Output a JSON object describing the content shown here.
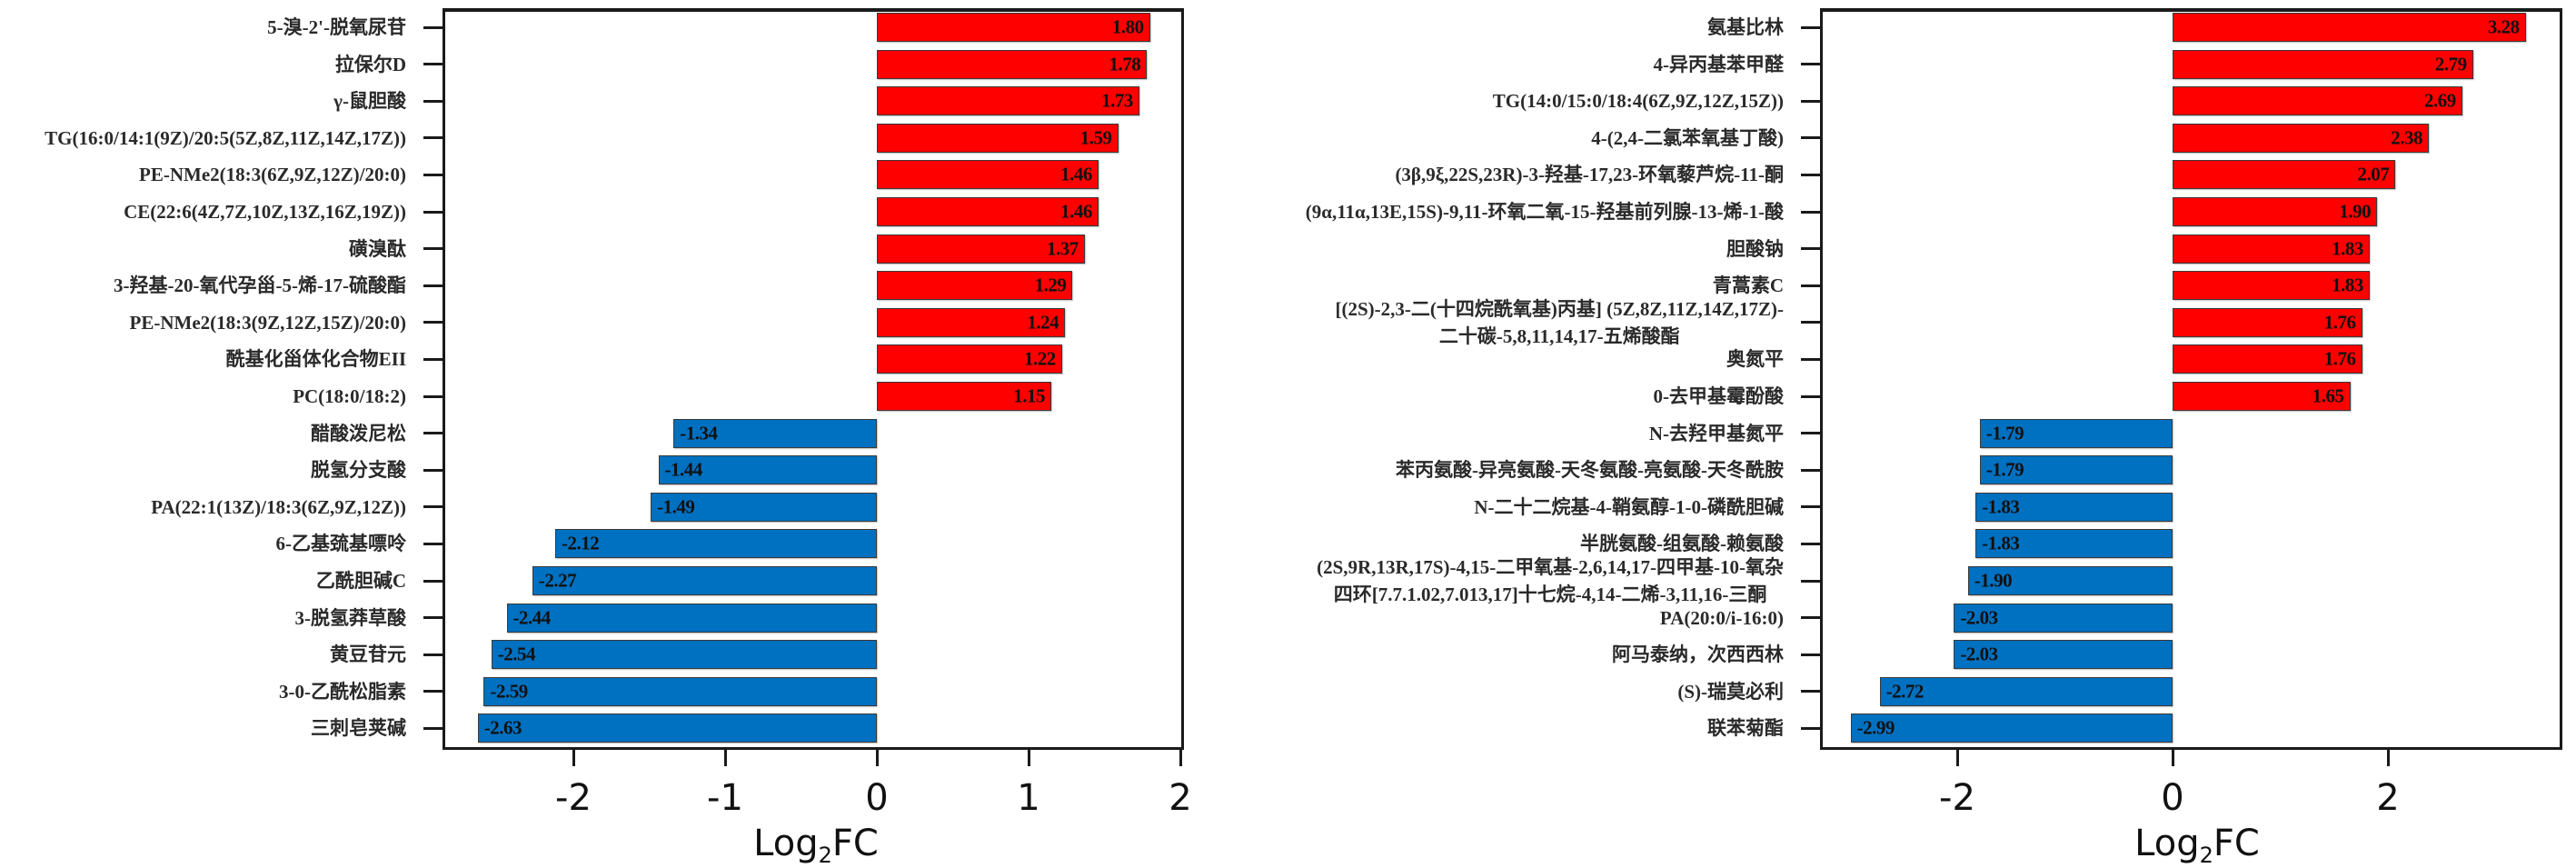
{
  "chart_data": [
    {
      "type": "bar",
      "orientation": "horizontal",
      "title": "",
      "xlabel": "Log2FC",
      "ylabel": "",
      "xlim": [
        -2.8,
        2.03
      ],
      "xticks": [
        -2,
        -1,
        0,
        1,
        2
      ],
      "grid": false,
      "legend": null,
      "colors": {
        "up": "#ff0000",
        "down": "#0070c0"
      },
      "categories": [
        "5-溴-2'-脱氧尿苷",
        "拉保尔D",
        "γ-鼠胆酸",
        "TG(16:0/14:1(9Z)/20:5(5Z,8Z,11Z,14Z,17Z))",
        "PE-NMe2(18:3(6Z,9Z,12Z)/20:0)",
        "CE(22:6(4Z,7Z,10Z,13Z,16Z,19Z))",
        "磺溴酞",
        "3-羟基-20-氧代孕甾-5-烯-17-硫酸酯",
        "PE-NMe2(18:3(9Z,12Z,15Z)/20:0)",
        "酰基化甾体化合物EII",
        "PC(18:0/18:2)",
        "醋酸泼尼松",
        "脱氢分支酸",
        "PA(22:1(13Z)/18:3(6Z,9Z,12Z))",
        "6-乙基巯基嘌呤",
        "乙酰胆碱C",
        "3-脱氢莽草酸",
        "黄豆苷元",
        "3-0-乙酰松脂素",
        "三刺皂荚碱"
      ],
      "values": [
        1.8,
        1.78,
        1.73,
        1.59,
        1.46,
        1.46,
        1.37,
        1.29,
        1.24,
        1.22,
        1.15,
        -1.34,
        -1.44,
        -1.49,
        -2.12,
        -2.27,
        -2.44,
        -2.54,
        -2.59,
        -2.63
      ],
      "value_labels": [
        "1.80",
        "1.78",
        "1.73",
        "1.59",
        "1.46",
        "1.46",
        "1.37",
        "1.29",
        "1.24",
        "1.22",
        "1.15",
        "-1.34",
        "-1.44",
        "-1.49",
        "-2.12",
        "-2.27",
        "-2.44",
        "-2.54",
        "-2.59",
        "-2.63"
      ]
    },
    {
      "type": "bar",
      "orientation": "horizontal",
      "title": "",
      "xlabel": "Log2FC",
      "ylabel": "",
      "xlim": [
        -3.26,
        3.63
      ],
      "xticks": [
        -2,
        0,
        2
      ],
      "grid": false,
      "legend": null,
      "colors": {
        "up": "#ff0000",
        "down": "#0070c0"
      },
      "categories": [
        "氨基比林",
        "4-异丙基苯甲醛",
        "TG(14:0/15:0/18:4(6Z,9Z,12Z,15Z))",
        "4-(2,4-二氯苯氧基丁酸)",
        "(3β,9ξ,22S,23R)-3-羟基-17,23-环氧藜芦烷-11-酮",
        "(9α,11α,13E,15S)-9,11-环氧二氧-15-羟基前列腺-13-烯-1-酸",
        "胆酸钠",
        "青蒿素C",
        "[(2S)-2,3-二(十四烷酰氧基)丙基] (5Z,8Z,11Z,14Z,17Z)-二十碳-5,8,11,14,17-五烯酸酯",
        "奥氮平",
        "0-去甲基霉酚酸",
        "N-去羟甲基氮平",
        "苯丙氨酸-异亮氨酸-天冬氨酸-亮氨酸-天冬酰胺",
        "N-二十二烷基-4-鞘氨醇-1-0-磷酰胆碱",
        "半胱氨酸-组氨酸-赖氨酸",
        "(2S,9R,13R,17S)-4,15-二甲氧基-2,6,14,17-四甲基-10-氧杂四环[7.7.1.02,7.013,17]十七烷-4,14-二烯-3,11,16-三酮",
        "PA(20:0/i-16:0)",
        "阿马泰纳，次西西林",
        "(S)-瑞莫必利",
        "联苯菊酯"
      ],
      "values": [
        3.28,
        2.79,
        2.69,
        2.38,
        2.07,
        1.9,
        1.83,
        1.83,
        1.76,
        1.76,
        1.65,
        -1.79,
        -1.79,
        -1.83,
        -1.83,
        -1.9,
        -2.03,
        -2.03,
        -2.72,
        -2.99
      ],
      "value_labels": [
        "3.28",
        "2.79",
        "2.69",
        "2.38",
        "2.07",
        "1.90",
        "1.83",
        "1.83",
        "1.76",
        "1.76",
        "1.65",
        "-1.79",
        "-1.79",
        "-1.83",
        "-1.83",
        "-1.90",
        "-2.03",
        "-2.03",
        "-2.72",
        "-2.99"
      ]
    }
  ],
  "panels": [
    {
      "xlabel_main": "Log",
      "xlabel_sub": "2",
      "xlabel_tail": "FC",
      "xtick_labels": [
        "-2",
        "-1",
        "0",
        "1",
        "2"
      ],
      "label_lines": [
        [
          "5-溴-2'-脱氧尿苷"
        ],
        [
          "拉保尔D"
        ],
        [
          "γ-鼠胆酸"
        ],
        [
          "TG(16:0/14:1(9Z)/20:5(5Z,8Z,11Z,14Z,17Z))"
        ],
        [
          "PE-NMe2(18:3(6Z,9Z,12Z)/20:0)"
        ],
        [
          "CE(22:6(4Z,7Z,10Z,13Z,16Z,19Z))"
        ],
        [
          "磺溴酞"
        ],
        [
          "3-羟基-20-氧代孕甾-5-烯-17-硫酸酯"
        ],
        [
          "PE-NMe2(18:3(9Z,12Z,15Z)/20:0)"
        ],
        [
          "酰基化甾体化合物EII"
        ],
        [
          "PC(18:0/18:2)"
        ],
        [
          "醋酸泼尼松"
        ],
        [
          "脱氢分支酸"
        ],
        [
          "PA(22:1(13Z)/18:3(6Z,9Z,12Z))"
        ],
        [
          "6-乙基巯基嘌呤"
        ],
        [
          "乙酰胆碱C"
        ],
        [
          "3-脱氢莽草酸"
        ],
        [
          "黄豆苷元"
        ],
        [
          "3-0-乙酰松脂素"
        ],
        [
          "三刺皂荚碱"
        ]
      ]
    },
    {
      "xlabel_main": "Log",
      "xlabel_sub": "2",
      "xlabel_tail": "FC",
      "xtick_labels": [
        "-2",
        "0",
        "2"
      ],
      "label_lines": [
        [
          "氨基比林"
        ],
        [
          "4-异丙基苯甲醛"
        ],
        [
          "TG(14:0/15:0/18:4(6Z,9Z,12Z,15Z))"
        ],
        [
          "4-(2,4-二氯苯氧基丁酸)"
        ],
        [
          "(3β,9ξ,22S,23R)-3-羟基-17,23-环氧藜芦烷-11-酮"
        ],
        [
          "(9α,11α,13E,15S)-9,11-环氧二氧-15-羟基前列腺-13-烯-1-酸"
        ],
        [
          "胆酸钠"
        ],
        [
          "青蒿素C"
        ],
        [
          "[(2S)-2,3-二(十四烷酰氧基)丙基] (5Z,8Z,11Z,14Z,17Z)-",
          "二十碳-5,8,11,14,17-五烯酸酯"
        ],
        [
          "奥氮平"
        ],
        [
          "0-去甲基霉酚酸"
        ],
        [
          "N-去羟甲基氮平"
        ],
        [
          "苯丙氨酸-异亮氨酸-天冬氨酸-亮氨酸-天冬酰胺"
        ],
        [
          "N-二十二烷基-4-鞘氨醇-1-0-磷酰胆碱"
        ],
        [
          "半胱氨酸-组氨酸-赖氨酸"
        ],
        [
          "(2S,9R,13R,17S)-4,15-二甲氧基-2,6,14,17-四甲基-10-氧杂",
          "四环[7.7.1.02,7.013,17]十七烷-4,14-二烯-3,11,16-三酮"
        ],
        [
          "PA(20:0/i-16:0)"
        ],
        [
          "阿马泰纳，次西西林"
        ],
        [
          "(S)-瑞莫必利"
        ],
        [
          "联苯菊酯"
        ]
      ]
    }
  ]
}
